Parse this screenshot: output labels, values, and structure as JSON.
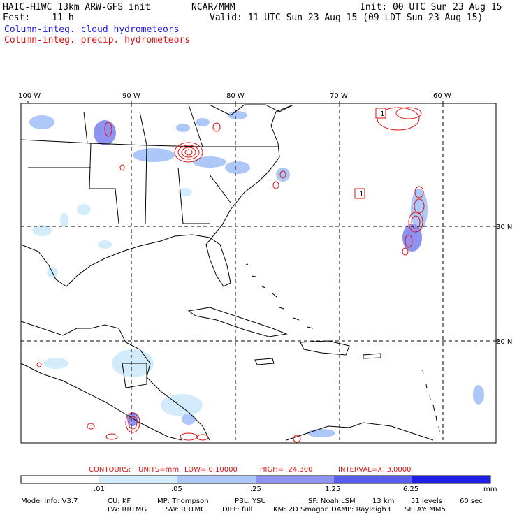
{
  "header": {
    "model_title": "HAIC-HIWC 13km ARW-GFS init",
    "org": "NCAR/MMM",
    "init": "Init: 00 UTC Sun 23 Aug 15",
    "fcst": "Fcst:    11 h",
    "valid": "Valid: 11 UTC Sun 23 Aug 15 (09 LDT Sun 23 Aug 15)",
    "field_cloud": "Column-integ. cloud hydrometeors",
    "field_precip": "Column-integ. precip. hydrometeors"
  },
  "map": {
    "lon_labels": [
      "100 W",
      "90 W",
      "80 W",
      "70 W",
      "60 W"
    ],
    "lat_labels": [
      "30 N",
      "20 N"
    ],
    "contour_labels": [
      ".1",
      ".1"
    ]
  },
  "contour_info": {
    "contours": "CONTOURS:",
    "units": "UNITS=mm",
    "low": "LOW= 0.10000",
    "high": "HIGH=  24.300",
    "interval": "INTERVAL=X  3.0000"
  },
  "colorbar": {
    "labels": [
      ".01",
      ".05",
      ".25",
      "1.25",
      "6.25"
    ],
    "unit": "mm",
    "colors": [
      "#ffffff",
      "#d2ecfb",
      "#adc7f8",
      "#8d93f3",
      "#5a5cea",
      "#1e1ee6"
    ]
  },
  "footer": {
    "line1": [
      "Model Info: V3.7",
      "CU: KF",
      "MP: Thompson",
      "PBL: YSU",
      "SF: Noah LSM",
      "13 km",
      "51 levels",
      "60 sec"
    ],
    "line2": [
      "LW: RRTMG",
      "SW: RRTMG",
      "DIFF: full",
      "KM: 2D Smagor",
      "DAMP: Rayleigh3",
      "SFLAY: MM5"
    ]
  }
}
